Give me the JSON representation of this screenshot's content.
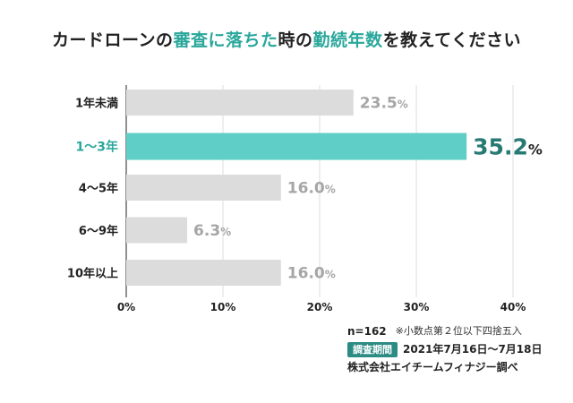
{
  "title": {
    "parts": [
      {
        "text": "カードローンの",
        "hl": false
      },
      {
        "text": "審査に落ちた",
        "hl": true
      },
      {
        "text": "時の",
        "hl": false
      },
      {
        "text": "勤続年数",
        "hl": true
      },
      {
        "text": "を教えてください",
        "hl": false
      }
    ]
  },
  "chart_data": {
    "type": "bar",
    "orientation": "horizontal",
    "categories": [
      "1年未満",
      "1〜3年",
      "4〜5年",
      "6〜9年",
      "10年以上"
    ],
    "values": [
      23.5,
      35.2,
      16.0,
      6.3,
      16.0
    ],
    "value_labels": [
      "23.5",
      "35.2",
      "16.0",
      "6.3",
      "16.0"
    ],
    "value_unit": "%",
    "highlight_index": 1,
    "xlim": [
      0,
      40
    ],
    "xticks": [
      "0%",
      "10%",
      "20%",
      "30%",
      "40%"
    ],
    "grid": true,
    "colors": {
      "bar": "#dcdcdc",
      "highlight_bar": "#5fcec6",
      "label": "#a6a6a6",
      "highlight_label": "#267a73",
      "highlight_category": "#2aa79b",
      "grid": "#dcdcdc"
    }
  },
  "meta": {
    "n": "n=162",
    "note": "※小数点第２位以下四捨五入",
    "period_label": "調査期間",
    "period": "2021年7月16日〜7月18日",
    "source": "株式会社エイチームフィナジー調べ"
  }
}
